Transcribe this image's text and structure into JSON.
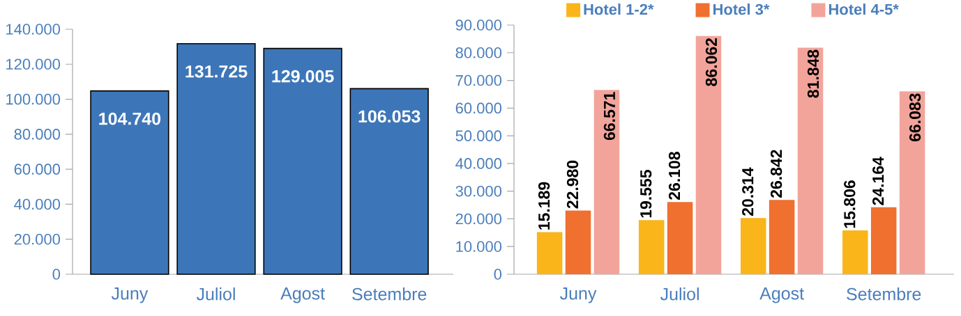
{
  "chart_data": [
    {
      "type": "bar",
      "categories": [
        "Juny",
        "Juliol",
        "Agost",
        "Setembre"
      ],
      "values": [
        104740,
        131725,
        129005,
        106053
      ],
      "color": "#3d76b8",
      "value_labels": [
        "104.740",
        "131.725",
        "129.005",
        "106.053"
      ],
      "ylim": [
        0,
        140000
      ],
      "yticks": [
        {
          "value": 0,
          "label": "0"
        },
        {
          "value": 20000,
          "label": "20.000"
        },
        {
          "value": 40000,
          "label": "40.000"
        },
        {
          "value": 60000,
          "label": "60.000"
        },
        {
          "value": 80000,
          "label": "80.000"
        },
        {
          "value": 100000,
          "label": "100.000"
        },
        {
          "value": 120000,
          "label": "120.000"
        },
        {
          "value": 140000,
          "label": "140.000"
        }
      ]
    },
    {
      "type": "bar",
      "categories": [
        "Juny",
        "Juliol",
        "Agost",
        "Setembre"
      ],
      "series": [
        {
          "name": "Hotel 1-2*",
          "color": "#f9b51a",
          "values": [
            15189,
            19555,
            20314,
            15806
          ],
          "value_labels": [
            "15.189",
            "19.555",
            "20.314",
            "15.806"
          ]
        },
        {
          "name": "Hotel 3*",
          "color": "#f07030",
          "values": [
            22980,
            26108,
            26842,
            24164
          ],
          "value_labels": [
            "22.980",
            "26.108",
            "26.842",
            "24.164"
          ]
        },
        {
          "name": "Hotel 4-5*",
          "color": "#f2a49b",
          "values": [
            66571,
            86062,
            81848,
            66083
          ],
          "value_labels": [
            "66.571",
            "86.062",
            "81.848",
            "66.083"
          ]
        }
      ],
      "legend": "top",
      "ylim": [
        0,
        90000
      ],
      "yticks": [
        {
          "value": 0,
          "label": "0"
        },
        {
          "value": 10000,
          "label": "10.000"
        },
        {
          "value": 20000,
          "label": "20.000"
        },
        {
          "value": 30000,
          "label": "30.000"
        },
        {
          "value": 40000,
          "label": "40.000"
        },
        {
          "value": 50000,
          "label": "50.000"
        },
        {
          "value": 60000,
          "label": "60.000"
        },
        {
          "value": 70000,
          "label": "70.000"
        },
        {
          "value": 80000,
          "label": "80.000"
        },
        {
          "value": 90000,
          "label": "90.000"
        }
      ]
    }
  ]
}
